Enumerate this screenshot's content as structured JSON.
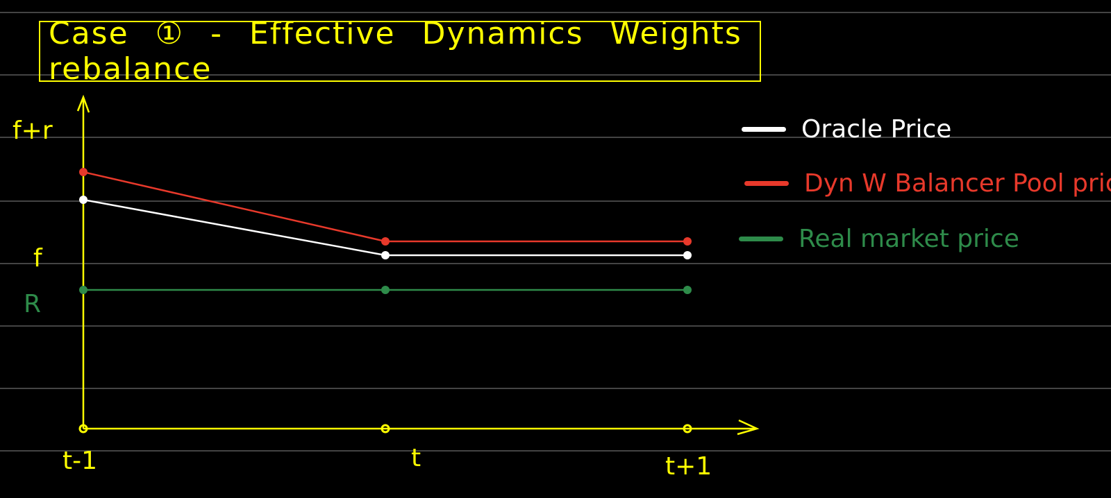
{
  "chart_data": {
    "type": "line",
    "title": "Case ① - Effective Dynamics Weights rebalance",
    "x_ticks": [
      "t-1",
      "t",
      "t+1"
    ],
    "x": [
      0,
      1,
      2
    ],
    "y_ticks": [
      {
        "label": "f+r",
        "value": 2.2,
        "color": "#ffff00"
      },
      {
        "label": "f",
        "value": 1.0,
        "color": "#ffff00"
      },
      {
        "label": "R",
        "value": 0.5,
        "color": "#2e8b4a"
      }
    ],
    "ylim": [
      -1.5,
      3.5
    ],
    "xlim": [
      0,
      2.25
    ],
    "series": [
      {
        "name": "Oracle Price",
        "color": "#ffffff",
        "values": [
          1.8,
          1.0,
          1.0
        ]
      },
      {
        "name": "Dyn W Balancer Pool price",
        "color": "#e8392b",
        "values": [
          2.2,
          1.2,
          1.2
        ]
      },
      {
        "name": "Real market price",
        "color": "#2e8b4a",
        "values": [
          0.5,
          0.5,
          0.5
        ]
      }
    ],
    "axis_color": "#ffff00",
    "background": "#000000",
    "guide_color": "#5a5a5a"
  }
}
